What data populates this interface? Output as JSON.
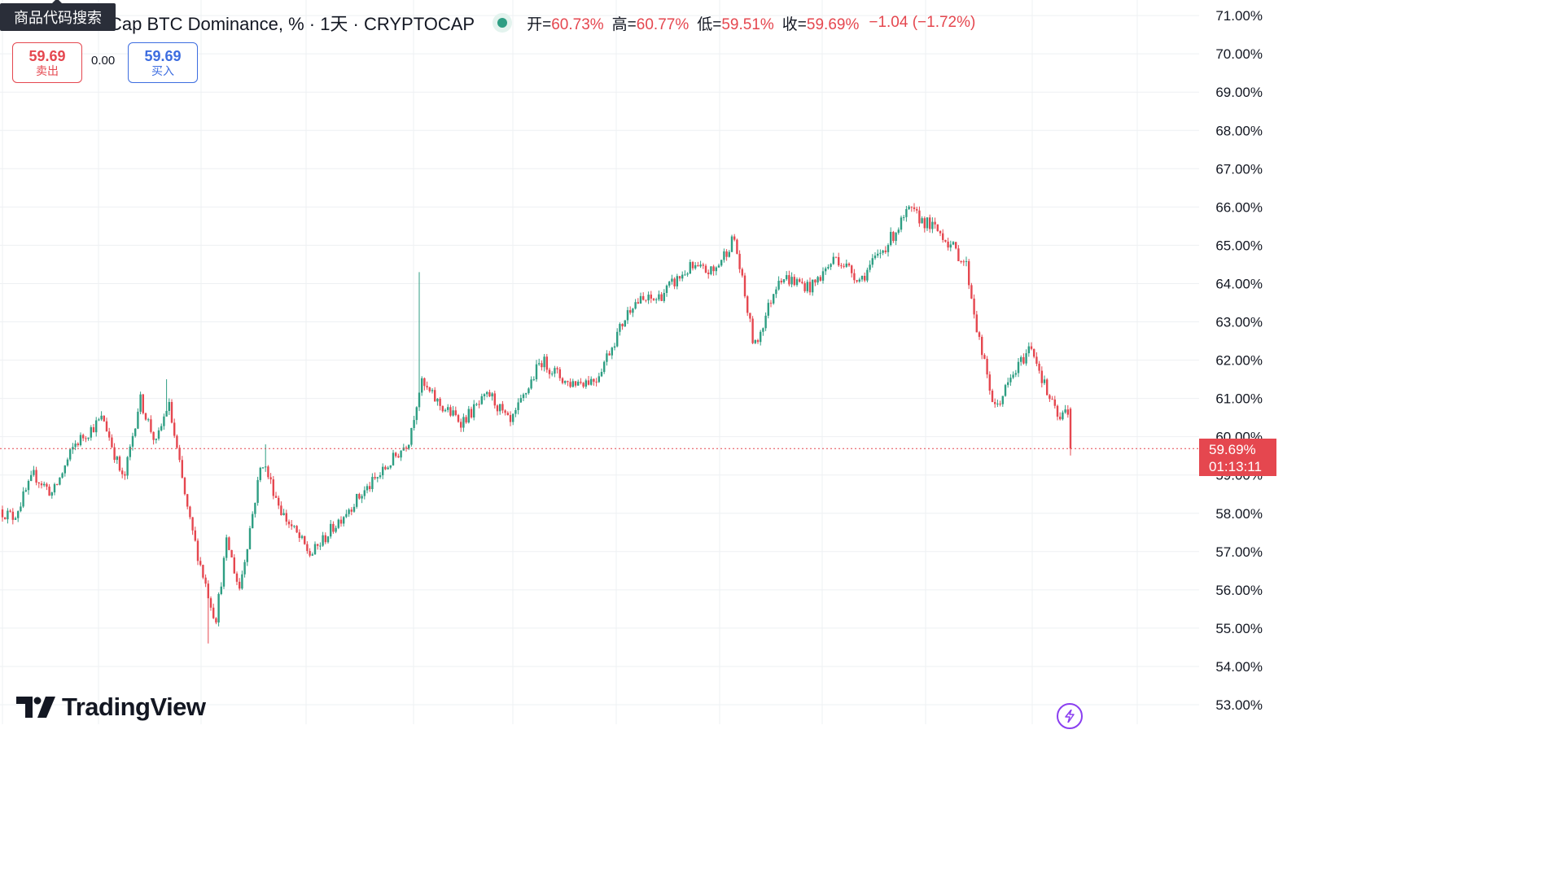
{
  "tooltip": {
    "text": "商品代码搜索"
  },
  "legend": {
    "title": "Cap BTC Dominance, % · 1天 · CRYPTOCAP",
    "open_label": "开=",
    "open_value": "60.73%",
    "high_label": "高=",
    "high_value": "60.77%",
    "low_label": "低=",
    "low_value": "59.51%",
    "close_label": "收=",
    "close_value": "59.69%",
    "change": "−1.04 (−1.72%)"
  },
  "trade": {
    "sell_price": "59.69",
    "sell_label": "卖出",
    "spread": "0.00",
    "buy_price": "59.69",
    "buy_label": "买入"
  },
  "price_tag": {
    "price": "59.69%",
    "countdown": "01:13:11"
  },
  "logo": {
    "text": "TradingView"
  },
  "colors": {
    "up": "#2e9e83",
    "down": "#e5474f",
    "grid": "#eef0f3",
    "axis_text": "#131722",
    "accent_buy": "#3d6de0",
    "bolt": "#8a3ff0"
  },
  "icons": [
    "tradingview-logo-icon",
    "lightning-bolt-icon",
    "status-dot-icon"
  ],
  "chart_data": {
    "type": "candlestick",
    "symbol": "CRYPTOCAP:BTC.D",
    "interval": "1天",
    "ylim": [
      53,
      71
    ],
    "y_ticks": [
      "53.00%",
      "54.00%",
      "55.00%",
      "56.00%",
      "57.00%",
      "58.00%",
      "59.00%",
      "60.00%",
      "61.00%",
      "62.00%",
      "63.00%",
      "64.00%",
      "65.00%",
      "66.00%",
      "67.00%",
      "68.00%",
      "69.00%",
      "70.00%",
      "71.00%"
    ],
    "last_price": 59.69,
    "last_candle": {
      "open": 60.73,
      "high": 60.77,
      "low": 59.51,
      "close": 59.69
    },
    "trend_anchors": [
      [
        0,
        58.1
      ],
      [
        20,
        57.9
      ],
      [
        45,
        59.0
      ],
      [
        68,
        58.5
      ],
      [
        95,
        59.8
      ],
      [
        130,
        60.5
      ],
      [
        155,
        58.8
      ],
      [
        175,
        61.0
      ],
      [
        195,
        59.8
      ],
      [
        210,
        60.9
      ],
      [
        235,
        57.9
      ],
      [
        250,
        56.6
      ],
      [
        268,
        55.2
      ],
      [
        282,
        57.3
      ],
      [
        297,
        56.0
      ],
      [
        325,
        59.4
      ],
      [
        350,
        58.0
      ],
      [
        385,
        56.9
      ],
      [
        430,
        58.1
      ],
      [
        470,
        59.0
      ],
      [
        505,
        59.9
      ],
      [
        520,
        61.4
      ],
      [
        545,
        60.8
      ],
      [
        570,
        60.4
      ],
      [
        605,
        61.1
      ],
      [
        630,
        60.3
      ],
      [
        668,
        62.0
      ],
      [
        700,
        61.4
      ],
      [
        735,
        61.5
      ],
      [
        780,
        63.5
      ],
      [
        810,
        63.6
      ],
      [
        850,
        64.4
      ],
      [
        880,
        64.3
      ],
      [
        905,
        65.2
      ],
      [
        930,
        62.3
      ],
      [
        960,
        64.2
      ],
      [
        1000,
        63.9
      ],
      [
        1030,
        64.7
      ],
      [
        1060,
        64.1
      ],
      [
        1095,
        65.1
      ],
      [
        1120,
        65.9
      ],
      [
        1160,
        65.3
      ],
      [
        1190,
        64.5
      ],
      [
        1205,
        62.6
      ],
      [
        1225,
        60.7
      ],
      [
        1245,
        61.5
      ],
      [
        1270,
        62.4
      ],
      [
        1290,
        61.1
      ],
      [
        1305,
        60.4
      ],
      [
        1312,
        60.7
      ]
    ],
    "spikes": [
      {
        "x": 516,
        "high": 64.3
      },
      {
        "x": 205,
        "high": 61.5
      },
      {
        "x": 327,
        "high": 59.8
      },
      {
        "x": 255,
        "low": 54.6
      }
    ]
  }
}
